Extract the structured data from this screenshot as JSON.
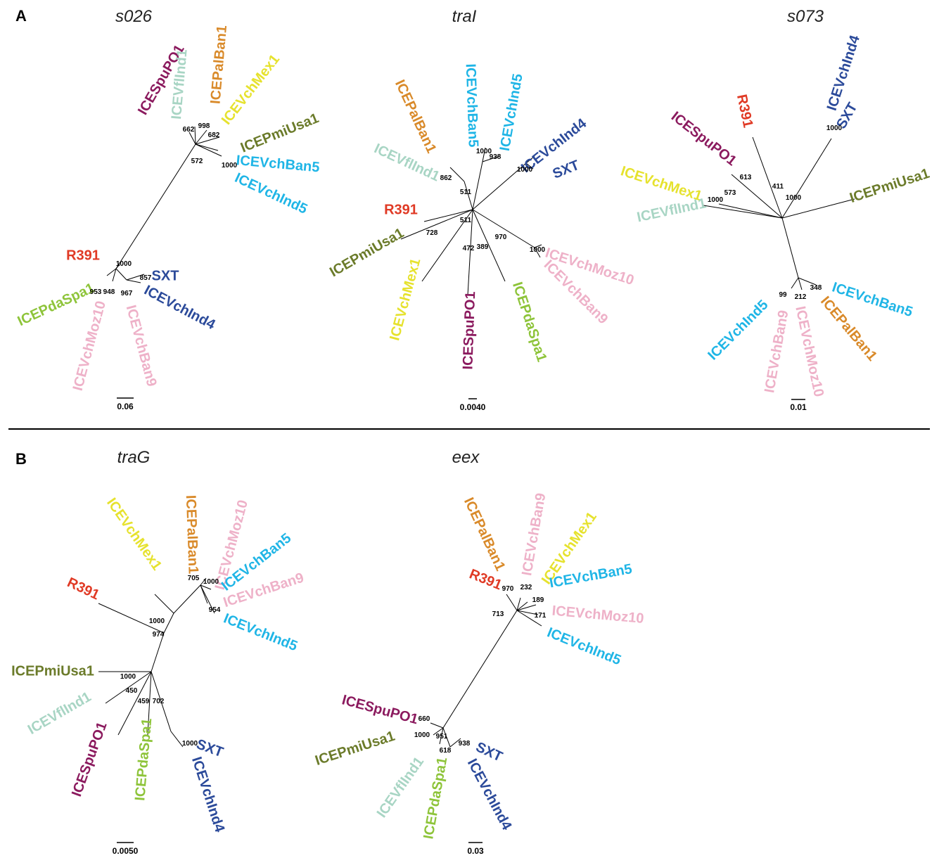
{
  "panels": [
    {
      "letter": "A"
    },
    {
      "letter": "B"
    }
  ],
  "colors": {
    "ICESpuPO1": "#8b1a5e",
    "ICEVflInd1": "#a8d5c4",
    "ICEPalBan1": "#d98a2a",
    "ICEVchMex1": "#e6e22e",
    "ICEPmiUsa1": "#6b7b2a",
    "ICEVchBan5": "#1fb5e6",
    "ICEVchInd5": "#1fb5e6",
    "ICEVchInd4": "#2b4a9a",
    "SXT": "#2b4a9a",
    "R391": "#e03a25",
    "ICEPdaSpa1": "#8ec43a",
    "ICEVchMoz10": "#eeb1c8",
    "ICEVchBan9": "#eeb1c8"
  },
  "trees": [
    {
      "id": "s026",
      "title": "s026",
      "scale_label": "0.06",
      "tips": [
        {
          "label": "ICESpuPO1",
          "rotation": -60
        },
        {
          "label": "ICEVflInd1",
          "rotation": -85
        },
        {
          "label": "ICEPalBan1",
          "rotation": -85
        },
        {
          "label": "ICEVchMex1",
          "rotation": -52
        },
        {
          "label": "ICEPmiUsa1",
          "rotation": -22
        },
        {
          "label": "ICEVchBan5",
          "rotation": 5
        },
        {
          "label": "ICEVchInd5",
          "rotation": 25
        },
        {
          "label": "R391",
          "rotation": 0
        },
        {
          "label": "ICEPdaSpa1",
          "rotation": -25
        },
        {
          "label": "ICEVchMoz10",
          "rotation": -75
        },
        {
          "label": "ICEVchBan9",
          "rotation": 75
        },
        {
          "label": "SXT",
          "rotation": 0
        },
        {
          "label": "ICEVchInd4",
          "rotation": 28
        }
      ],
      "bootstrap": [
        "662",
        "998",
        "682",
        "572",
        "1000",
        "1000",
        "953",
        "948",
        "967",
        "857"
      ]
    },
    {
      "id": "traI",
      "title": "traI",
      "scale_label": "0.0040",
      "tips": [
        {
          "label": "ICEPalBan1",
          "rotation": 65
        },
        {
          "label": "ICEVchBan5",
          "rotation": 88
        },
        {
          "label": "ICEVchInd5",
          "rotation": -80
        },
        {
          "label": "ICEVchInd4",
          "rotation": -38
        },
        {
          "label": "SXT",
          "rotation": -22
        },
        {
          "label": "ICEVflInd1",
          "rotation": 25
        },
        {
          "label": "R391",
          "rotation": 0
        },
        {
          "label": "ICEPmiUsa1",
          "rotation": -30
        },
        {
          "label": "ICEVchMex1",
          "rotation": -75
        },
        {
          "label": "ICESpuPO1",
          "rotation": -88
        },
        {
          "label": "ICEPdaSpa1",
          "rotation": 72
        },
        {
          "label": "ICEVchBan9",
          "rotation": 45
        },
        {
          "label": "ICEVchMoz10",
          "rotation": 18
        }
      ],
      "bootstrap": [
        "862",
        "511",
        "1000",
        "938",
        "1000",
        "728",
        "511",
        "472",
        "389",
        "970",
        "1000"
      ]
    },
    {
      "id": "s073",
      "title": "s073",
      "scale_label": "0.01",
      "tips": [
        {
          "label": "ICESpuPO1",
          "rotation": 38
        },
        {
          "label": "R391",
          "rotation": 78
        },
        {
          "label": "ICEVchInd4",
          "rotation": -72
        },
        {
          "label": "SXT",
          "rotation": -60
        },
        {
          "label": "ICEVchMex1",
          "rotation": 18
        },
        {
          "label": "ICEVflInd1",
          "rotation": -12
        },
        {
          "label": "ICEPmiUsa1",
          "rotation": -18
        },
        {
          "label": "ICEVchBan5",
          "rotation": 18
        },
        {
          "label": "ICEPalBan1",
          "rotation": 50
        },
        {
          "label": "ICEVchMoz10",
          "rotation": 78
        },
        {
          "label": "ICEVchBan9",
          "rotation": -80
        },
        {
          "label": "ICEVchInd5",
          "rotation": -45
        }
      ],
      "bootstrap": [
        "573",
        "613",
        "411",
        "1000",
        "1000",
        "1000",
        "99",
        "212",
        "348"
      ]
    },
    {
      "id": "traG",
      "title": "traG",
      "scale_label": "0.0050",
      "tips": [
        {
          "label": "ICEVchMex1",
          "rotation": 55
        },
        {
          "label": "ICEPalBan1",
          "rotation": 88
        },
        {
          "label": "ICEVchMoz10",
          "rotation": -75
        },
        {
          "label": "ICEVchBan5",
          "rotation": -38
        },
        {
          "label": "ICEVchBan9",
          "rotation": -18
        },
        {
          "label": "ICEVchInd5",
          "rotation": 22
        },
        {
          "label": "R391",
          "rotation": 25
        },
        {
          "label": "ICEPmiUsa1",
          "rotation": 0
        },
        {
          "label": "ICEVflInd1",
          "rotation": -30
        },
        {
          "label": "ICESpuPO1",
          "rotation": -70
        },
        {
          "label": "ICEPdaSpa1",
          "rotation": -85
        },
        {
          "label": "SXT",
          "rotation": 20
        },
        {
          "label": "ICEVchInd4",
          "rotation": 72
        }
      ],
      "bootstrap": [
        "705",
        "1000",
        "954",
        "1000",
        "974",
        "1000",
        "450",
        "459",
        "702",
        "1000"
      ]
    },
    {
      "id": "eex",
      "title": "eex",
      "scale_label": "0.03",
      "tips": [
        {
          "label": "ICEPalBan1",
          "rotation": 65
        },
        {
          "label": "ICEVchBan9",
          "rotation": -80
        },
        {
          "label": "ICEVchMex1",
          "rotation": -55
        },
        {
          "label": "R391",
          "rotation": 22
        },
        {
          "label": "ICEVchBan5",
          "rotation": -10
        },
        {
          "label": "ICEVchMoz10",
          "rotation": 5
        },
        {
          "label": "ICEVchInd5",
          "rotation": 22
        },
        {
          "label": "ICESpuPO1",
          "rotation": 15
        },
        {
          "label": "ICEPmiUsa1",
          "rotation": -18
        },
        {
          "label": "ICEVflInd1",
          "rotation": -55
        },
        {
          "label": "ICEPdaSpa1",
          "rotation": -80
        },
        {
          "label": "SXT",
          "rotation": 25
        },
        {
          "label": "ICEVchInd4",
          "rotation": 62
        }
      ],
      "bootstrap": [
        "970",
        "232",
        "189",
        "171",
        "713",
        "660",
        "1000",
        "951",
        "618",
        "938"
      ]
    }
  ]
}
